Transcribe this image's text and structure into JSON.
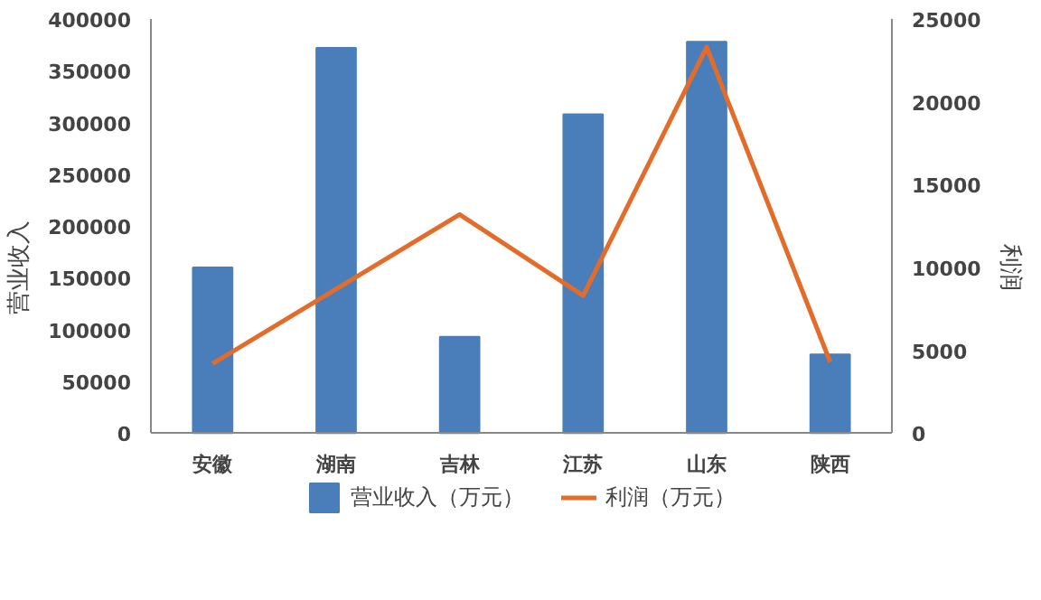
{
  "chart_data": {
    "type": "bar",
    "categories": [
      "安徽",
      "湖南",
      "吉林",
      "江苏",
      "山东",
      "陕西"
    ],
    "ylabel": "营业收入",
    "y2label": "利润",
    "ylim": [
      0,
      400000
    ],
    "yticks": [
      0,
      50000,
      100000,
      150000,
      200000,
      250000,
      300000,
      350000,
      400000
    ],
    "y2lim": [
      0,
      25000
    ],
    "y2ticks": [
      0,
      5000,
      10000,
      15000,
      20000,
      25000
    ],
    "series": [
      {
        "name": "营业收入（万元）",
        "color": "#4a7ebb",
        "values": [
          160000,
          372000,
          93000,
          308000,
          378000,
          76000
        ]
      },
      {
        "name": "利润（万元）",
        "type": "line",
        "axis": "y2",
        "color": "#e46c2a",
        "values": [
          4200,
          8700,
          13200,
          8300,
          23300,
          4300
        ]
      }
    ],
    "grid": false,
    "legend": "bottom"
  }
}
